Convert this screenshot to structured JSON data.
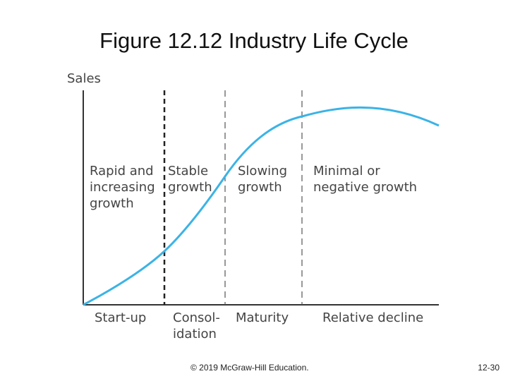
{
  "title": "Figure 12.12 Industry Life Cycle",
  "axis": {
    "ylabel": "Sales"
  },
  "regions": [
    {
      "lines": [
        "Rapid and",
        "increasing",
        "growth"
      ]
    },
    {
      "lines": [
        "Stable",
        "growth"
      ]
    },
    {
      "lines": [
        "Slowing",
        "growth"
      ]
    },
    {
      "lines": [
        "Minimal or",
        "negative growth"
      ]
    }
  ],
  "stages": [
    {
      "lines": [
        "Start-up"
      ]
    },
    {
      "lines": [
        "Consol-",
        "idation"
      ]
    },
    {
      "lines": [
        "Maturity"
      ]
    },
    {
      "lines": [
        "Relative decline"
      ]
    }
  ],
  "colors": {
    "curve": "#3bb3e6",
    "axis": "#333333",
    "divider": "#333333"
  },
  "footer": {
    "copyright": "© 2019 McGraw-Hill Education.",
    "page": "12-30"
  }
}
